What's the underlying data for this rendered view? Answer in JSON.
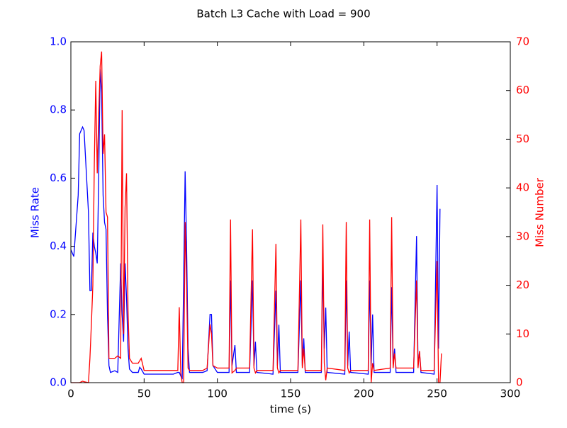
{
  "chart_data": {
    "type": "line",
    "title": "Batch L3 Cache with Load = 900",
    "xlabel": "time (s)",
    "ylabel": "Miss Rate",
    "y2label": "Miss Number",
    "x": [
      0,
      2,
      5,
      6,
      8,
      9,
      12,
      13,
      14,
      15,
      16,
      17,
      18,
      19,
      20,
      21,
      22,
      23,
      24,
      25,
      26,
      27,
      30,
      32,
      34,
      35,
      36,
      37,
      38,
      39,
      40,
      42,
      46,
      47,
      48,
      50,
      60,
      70,
      73,
      74,
      75,
      76,
      77,
      78,
      79,
      80,
      81,
      90,
      93,
      95,
      96,
      97,
      100,
      108,
      109,
      110,
      112,
      113,
      122,
      124,
      125,
      126,
      127,
      138,
      140,
      141,
      142,
      143,
      155,
      157,
      158,
      159,
      160,
      171,
      172,
      173,
      174,
      175,
      187,
      188,
      189,
      190,
      191,
      203,
      204,
      205,
      206,
      207,
      218,
      219,
      220,
      221,
      222,
      234,
      236,
      237,
      238,
      239,
      248,
      250,
      251,
      252,
      253
    ],
    "series": [
      {
        "name": "Miss Rate",
        "color": "#0000ff",
        "axis": "y",
        "values": [
          0.39,
          0.37,
          0.55,
          0.73,
          0.75,
          0.74,
          0.5,
          0.27,
          0.27,
          0.44,
          0.4,
          0.38,
          0.35,
          0.6,
          0.92,
          0.85,
          0.55,
          0.47,
          0.45,
          0.2,
          0.05,
          0.03,
          0.035,
          0.03,
          0.35,
          0.2,
          0.12,
          0.35,
          0.25,
          0.1,
          0.04,
          0.03,
          0.03,
          0.045,
          0.04,
          0.025,
          0.025,
          0.025,
          0.03,
          0.03,
          0.02,
          0.01,
          0.3,
          0.62,
          0.4,
          0.1,
          0.03,
          0.03,
          0.035,
          0.2,
          0.2,
          0.05,
          0.03,
          0.03,
          0.3,
          0.05,
          0.11,
          0.03,
          0.03,
          0.3,
          0.05,
          0.12,
          0.03,
          0.025,
          0.27,
          0.05,
          0.17,
          0.03,
          0.03,
          0.3,
          0.05,
          0.13,
          0.03,
          0.03,
          0.35,
          0.1,
          0.22,
          0.03,
          0.025,
          0.3,
          0.05,
          0.15,
          0.03,
          0.025,
          0.3,
          0.05,
          0.2,
          0.03,
          0.03,
          0.28,
          0.05,
          0.1,
          0.03,
          0.03,
          0.43,
          0.05,
          0.09,
          0.03,
          0.025,
          0.58,
          0.1,
          0.51,
          null
        ]
      },
      {
        "name": "Miss Number",
        "color": "#ff0000",
        "axis": "y2",
        "values": [
          0,
          0,
          0,
          0,
          0.3,
          0.2,
          0,
          5,
          12,
          20,
          45,
          62,
          43,
          55,
          65,
          68,
          47,
          51,
          35,
          34,
          5,
          5,
          5,
          5.5,
          5,
          56,
          10,
          36,
          43,
          15,
          5,
          4,
          4,
          4.5,
          5,
          2.5,
          2.5,
          2.5,
          2.5,
          15.5,
          2,
          0,
          0,
          33,
          20,
          3,
          2.5,
          2.5,
          3,
          12,
          10,
          3.5,
          3,
          3,
          33.5,
          2,
          2.5,
          3,
          3,
          31.5,
          3,
          2,
          2.5,
          2.5,
          28.5,
          3,
          2,
          2.5,
          2.5,
          33.5,
          3,
          7,
          2.5,
          2.5,
          32.5,
          4,
          0.5,
          3,
          2.5,
          33,
          3,
          2,
          2.5,
          2.5,
          33.5,
          0,
          4,
          2.5,
          3,
          34,
          3,
          6,
          3,
          3,
          21,
          3,
          6.5,
          2.5,
          2.5,
          25,
          0,
          0,
          6
        ]
      }
    ],
    "xlim": [
      0,
      300
    ],
    "xticks": [
      0,
      50,
      100,
      150,
      200,
      250,
      300
    ],
    "ylim": [
      0,
      1
    ],
    "yticks": [
      {
        "value": 0,
        "label": "0.0"
      },
      {
        "value": 0.2,
        "label": "0.2"
      },
      {
        "value": 0.4,
        "label": "0.4"
      },
      {
        "value": 0.6,
        "label": "0.6"
      },
      {
        "value": 0.8,
        "label": "0.8"
      },
      {
        "value": 1,
        "label": "1.0"
      }
    ],
    "y2lim": [
      0,
      70
    ],
    "y2ticks": [
      0,
      10,
      20,
      30,
      40,
      50,
      60,
      70
    ]
  }
}
